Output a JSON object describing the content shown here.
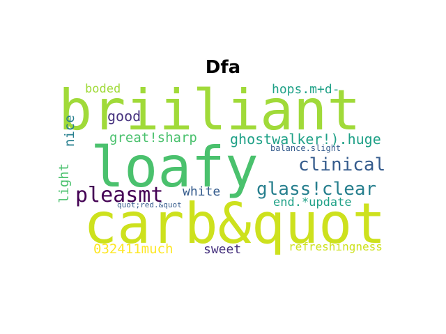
{
  "title": "Dfa",
  "words": [
    {
      "text": "briiliant",
      "color": "#a0da39"
    },
    {
      "text": "loafy",
      "color": "#4ac16d"
    },
    {
      "text": "carb&quot",
      "color": "#cde11d"
    },
    {
      "text": "hops.m+d-",
      "color": "#1fa187"
    },
    {
      "text": "boded",
      "color": "#a0da39"
    },
    {
      "text": "good",
      "color": "#46327e"
    },
    {
      "text": "great!sharp",
      "color": "#4ac16d"
    },
    {
      "text": "ghostwalker!).huge",
      "color": "#1fa187"
    },
    {
      "text": "clinical",
      "color": "#365c8d"
    },
    {
      "text": "nice",
      "color": "#277f8e"
    },
    {
      "text": "balance.slight",
      "color": "#365c8d"
    },
    {
      "text": "pleasmt",
      "color": "#440154"
    },
    {
      "text": "glass!clear",
      "color": "#277f8e"
    },
    {
      "text": "white",
      "color": "#365c8d"
    },
    {
      "text": "light",
      "color": "#4ac16d"
    },
    {
      "text": "end.*update",
      "color": "#1fa187"
    },
    {
      "text": "quot;red.&quot",
      "color": "#365c8d"
    },
    {
      "text": "032411much",
      "color": "#fde725"
    },
    {
      "text": "sweet",
      "color": "#46327e"
    },
    {
      "text": "refreshingness",
      "color": "#cde11d"
    }
  ]
}
